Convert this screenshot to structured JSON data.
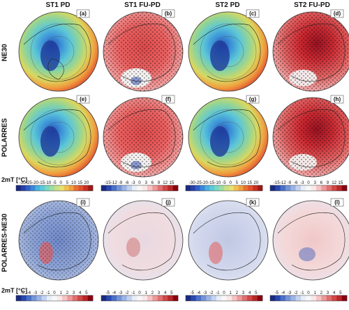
{
  "column_titles": [
    "ST1 PD",
    "ST1 FU-PD",
    "ST2 PD",
    "ST2 FU-PD"
  ],
  "row_labels": [
    "NE30",
    "POLARRES",
    "POLARRES-NE30"
  ],
  "unit_labels": [
    "2mT [°C]",
    "2mT [°C]"
  ],
  "panel_letters": [
    "(a)",
    "(b)",
    "(c)",
    "(d)",
    "(e)",
    "(f)",
    "(g)",
    "(h)",
    "(i)",
    "(j)",
    "(k)",
    "(l)"
  ],
  "colorbars": {
    "pd": [
      "-30",
      "-25",
      "-20",
      "-15",
      "-10",
      "-5",
      "0",
      "5",
      "10",
      "15",
      "20"
    ],
    "fu": [
      "-15",
      "-12",
      "-9",
      "-6",
      "-3",
      "0",
      "3",
      "6",
      "9",
      "12",
      "15"
    ],
    "diff": [
      "-5",
      "-4",
      "-3",
      "-2",
      "-1",
      "0",
      "1",
      "2",
      "3",
      "4",
      "5"
    ]
  },
  "colors": {
    "cold_dark": "#1a2a80",
    "warm_dark": "#8a0010",
    "neutral": "#f5f5f5"
  }
}
